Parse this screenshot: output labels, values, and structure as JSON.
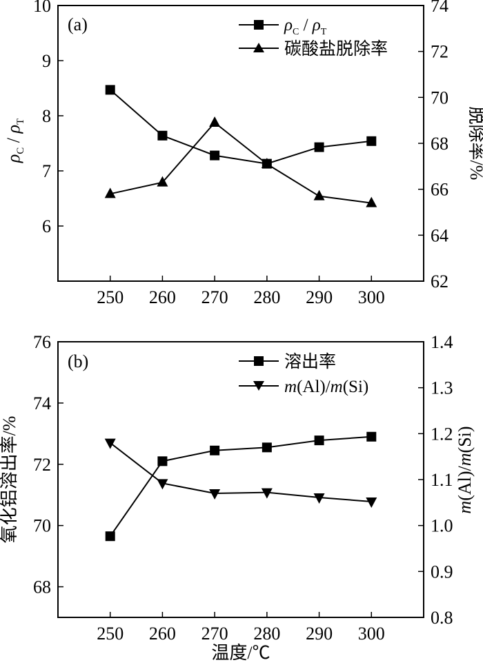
{
  "chart_data": [
    {
      "panel": "(a)",
      "type": "line",
      "x": [
        250,
        260,
        270,
        280,
        290,
        300
      ],
      "xlim": [
        240,
        310
      ],
      "xticks": [
        250,
        260,
        270,
        280,
        290,
        300
      ],
      "xlabel": "",
      "ylabel_left": "ρC / ρT",
      "ylim_left": [
        5,
        10
      ],
      "yticks_left": [
        6,
        7,
        8,
        9,
        10
      ],
      "ylabel_right": "脱除率/%",
      "ylim_right": [
        62,
        74
      ],
      "yticks_right": [
        62,
        64,
        66,
        68,
        70,
        72,
        74
      ],
      "legend_position": "top-right",
      "series": [
        {
          "name": "ρC / ρT",
          "axis": "left",
          "marker": "square",
          "values": [
            8.47,
            7.64,
            7.28,
            7.13,
            7.43,
            7.54
          ]
        },
        {
          "name": "碳酸盐脱除率",
          "axis": "right",
          "marker": "triangle-up",
          "values": [
            65.8,
            66.3,
            68.9,
            67.1,
            65.7,
            65.4
          ]
        }
      ]
    },
    {
      "panel": "(b)",
      "type": "line",
      "x": [
        250,
        260,
        270,
        280,
        290,
        300
      ],
      "xlim": [
        240,
        310
      ],
      "xticks": [
        250,
        260,
        270,
        280,
        290,
        300
      ],
      "xlabel": "温度/℃",
      "ylabel_left": "氧化铝溶出率/%",
      "ylim_left": [
        67,
        76
      ],
      "yticks_left": [
        68,
        70,
        72,
        74,
        76
      ],
      "ylabel_right": "m(Al)/m(Si)",
      "ylim_right": [
        0.8,
        1.4
      ],
      "yticks_right": [
        "0.8",
        "0.9",
        "1.0",
        "1.1",
        "1.2",
        "1.3",
        "1.4"
      ],
      "legend_position": "top-right",
      "series": [
        {
          "name": "溶出率",
          "axis": "left",
          "marker": "square",
          "values": [
            69.65,
            72.1,
            72.45,
            72.55,
            72.78,
            72.9
          ]
        },
        {
          "name": "m(Al)/m(Si)",
          "axis": "right",
          "marker": "triangle-down",
          "values": [
            1.18,
            1.092,
            1.07,
            1.072,
            1.061,
            1.052
          ]
        }
      ]
    }
  ]
}
